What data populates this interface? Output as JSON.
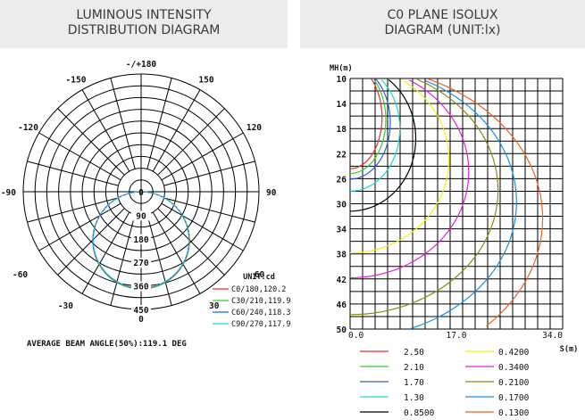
{
  "headers": {
    "left": [
      "LUMINOUS INTENSITY",
      "DISTRIBUTION DIAGRAM"
    ],
    "right": [
      "C0 PLANE ISOLUX",
      "DIAGRAM (UNIT:lx)"
    ]
  },
  "chart_data": [
    {
      "type": "polar",
      "title": "LUMINOUS INTENSITY DISTRIBUTION DIAGRAM",
      "angle_labels": [
        {
          "text": "-/+180",
          "angle": 180
        },
        {
          "text": "150",
          "angle": 150
        },
        {
          "text": "-150",
          "angle": -150
        },
        {
          "text": "120",
          "angle": 120
        },
        {
          "text": "-120",
          "angle": -120
        },
        {
          "text": "90",
          "angle": 90
        },
        {
          "text": "-90",
          "angle": -90
        },
        {
          "text": "60",
          "angle": 60
        },
        {
          "text": "-60",
          "angle": -60
        },
        {
          "text": "30",
          "angle": 30
        },
        {
          "text": "-30",
          "angle": -30
        },
        {
          "text": "0",
          "angle": 0
        }
      ],
      "radial_labels": [
        "0",
        "90",
        "180",
        "270",
        "360",
        "450"
      ],
      "radial_max": 450,
      "rings": 10,
      "spokes_every_deg": 15,
      "unit_label": "UNIT:cd",
      "series": [
        {
          "name": "C0/180,120.2",
          "color": "#e53030",
          "peak": 372
        },
        {
          "name": "C30/210,119.9",
          "color": "#33cc33",
          "peak": 371
        },
        {
          "name": "C60/240,118.3",
          "color": "#2f5fd8",
          "peak": 369
        },
        {
          "name": "C90/270,117.9",
          "color": "#20d4d4",
          "peak": 368
        }
      ],
      "footer": "AVERAGE BEAM ANGLE(50%):119.1 DEG"
    },
    {
      "type": "line",
      "title": "C0 PLANE ISOLUX DIAGRAM (UNIT:lx)",
      "ylabel": "MH(m)",
      "xlabel": "S(m)",
      "y_ticks": [
        10,
        14,
        18,
        22,
        26,
        30,
        34,
        38,
        42,
        46,
        50
      ],
      "x_ticks": [
        0.0,
        17.0,
        34.0
      ],
      "x_tick_labels": [
        "0.0",
        "17.0",
        "34.0"
      ],
      "xlim": [
        0,
        34
      ],
      "ylim": [
        10,
        50
      ],
      "grid": true,
      "series": [
        {
          "name": "2.50",
          "color": "#e53030",
          "reach": 5.0
        },
        {
          "name": "2.10",
          "color": "#33cc33",
          "reach": 5.6
        },
        {
          "name": "1.70",
          "color": "#2f5fd8",
          "reach": 6.3
        },
        {
          "name": "1.30",
          "color": "#20d4d4",
          "reach": 7.8
        },
        {
          "name": "0.8500",
          "color": "#000000",
          "reach": 10.3
        },
        {
          "name": "0.4200",
          "color": "#f2f20d",
          "reach": 15.5
        },
        {
          "name": "0.3400",
          "color": "#e020e0",
          "reach": 18.6
        },
        {
          "name": "0.2100",
          "color": "#8a8a10",
          "reach": 23.2
        },
        {
          "name": "0.1700",
          "color": "#1e8fe0",
          "reach": 26.1
        },
        {
          "name": "0.1300",
          "color": "#f06020",
          "reach": 30.2
        }
      ]
    }
  ]
}
